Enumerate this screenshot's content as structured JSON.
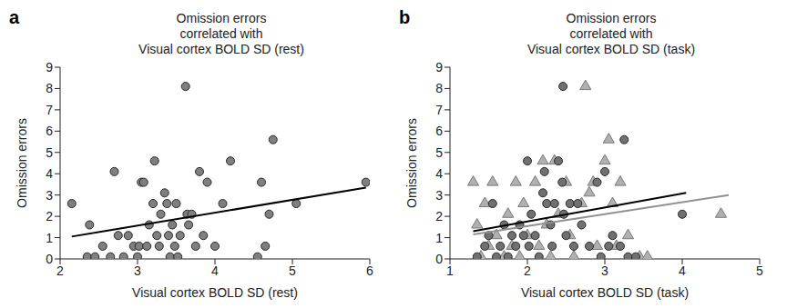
{
  "chart_data": [
    {
      "panel": "a",
      "type": "scatter",
      "title": "Omission errors\ncorrelated with\nVisual cortex BOLD SD (rest)",
      "x_label": "Visual cortex BOLD SD (rest)",
      "y_label": "Omission errors",
      "xlim": [
        2,
        6
      ],
      "xticks": [
        2,
        3,
        4,
        5,
        6
      ],
      "ylim": [
        0,
        9
      ],
      "yticks": [
        0,
        1,
        2,
        3,
        4,
        5,
        6,
        7,
        8,
        9
      ],
      "grid": false,
      "series": [
        {
          "type": "scatter",
          "marker": "circle",
          "color": "#7f7f7f",
          "values": [
            [
              2.15,
              2.6
            ],
            [
              2.35,
              0.1
            ],
            [
              2.38,
              1.6
            ],
            [
              2.45,
              0.1
            ],
            [
              2.55,
              0.6
            ],
            [
              2.65,
              0.1
            ],
            [
              2.7,
              4.1
            ],
            [
              2.75,
              1.1
            ],
            [
              2.82,
              0.1
            ],
            [
              2.88,
              1.1
            ],
            [
              2.95,
              0.6
            ],
            [
              3.0,
              0.1
            ],
            [
              3.02,
              0.6
            ],
            [
              3.05,
              3.6
            ],
            [
              3.08,
              3.6
            ],
            [
              3.12,
              0.6
            ],
            [
              3.15,
              1.6
            ],
            [
              3.2,
              2.6
            ],
            [
              3.22,
              4.6
            ],
            [
              3.25,
              1.1
            ],
            [
              3.28,
              0.6
            ],
            [
              3.3,
              2.1
            ],
            [
              3.35,
              3.1
            ],
            [
              3.38,
              2.6
            ],
            [
              3.4,
              1.1
            ],
            [
              3.42,
              0.1
            ],
            [
              3.45,
              1.6
            ],
            [
              3.48,
              0.6
            ],
            [
              3.5,
              2.6
            ],
            [
              3.52,
              0.1
            ],
            [
              3.55,
              1.1
            ],
            [
              3.62,
              8.1
            ],
            [
              3.64,
              2.1
            ],
            [
              3.66,
              1.6
            ],
            [
              3.7,
              2.1
            ],
            [
              3.75,
              0.6
            ],
            [
              3.8,
              4.1
            ],
            [
              3.85,
              1.1
            ],
            [
              3.9,
              3.6
            ],
            [
              4.0,
              0.6
            ],
            [
              4.1,
              2.6
            ],
            [
              4.2,
              4.6
            ],
            [
              4.55,
              0.1
            ],
            [
              4.6,
              3.6
            ],
            [
              4.65,
              0.6
            ],
            [
              4.7,
              2.1
            ],
            [
              4.75,
              5.6
            ],
            [
              5.05,
              2.6
            ],
            [
              5.95,
              3.6
            ]
          ]
        },
        {
          "type": "line",
          "color": "#000000",
          "values": [
            [
              2.15,
              1.05
            ],
            [
              5.95,
              3.35
            ]
          ]
        }
      ]
    },
    {
      "panel": "b",
      "type": "scatter",
      "title": "Omission errors\ncorrelated with\nVisual cortex BOLD SD (task)",
      "x_label": "Visual cortex BOLD SD (task)",
      "y_label": "Omission errors",
      "xlim": [
        1,
        5
      ],
      "xticks": [
        1,
        2,
        3,
        4,
        5
      ],
      "ylim": [
        0,
        9
      ],
      "yticks": [
        0,
        1,
        2,
        3,
        4,
        5,
        6,
        7,
        8,
        9
      ],
      "grid": false,
      "series": [
        {
          "type": "scatter",
          "marker": "triangle",
          "color": "#b0b0b0",
          "values": [
            [
              1.3,
              3.6
            ],
            [
              1.35,
              1.6
            ],
            [
              1.4,
              0.1
            ],
            [
              1.45,
              2.6
            ],
            [
              1.5,
              0.6
            ],
            [
              1.55,
              3.6
            ],
            [
              1.6,
              1.1
            ],
            [
              1.7,
              0.1
            ],
            [
              1.75,
              2.1
            ],
            [
              1.8,
              0.6
            ],
            [
              1.85,
              3.6
            ],
            [
              1.9,
              0.1
            ],
            [
              1.95,
              2.6
            ],
            [
              2.0,
              1.1
            ],
            [
              2.1,
              3.6
            ],
            [
              2.15,
              0.6
            ],
            [
              2.2,
              4.6
            ],
            [
              2.25,
              1.6
            ],
            [
              2.3,
              0.1
            ],
            [
              2.35,
              4.6
            ],
            [
              2.4,
              2.1
            ],
            [
              2.5,
              3.6
            ],
            [
              2.55,
              1.1
            ],
            [
              2.6,
              0.1
            ],
            [
              2.7,
              2.6
            ],
            [
              2.75,
              8.1
            ],
            [
              2.8,
              3.1
            ],
            [
              2.85,
              3.6
            ],
            [
              2.9,
              0.6
            ],
            [
              3.0,
              4.6
            ],
            [
              3.05,
              5.6
            ],
            [
              3.1,
              2.6
            ],
            [
              3.15,
              0.6
            ],
            [
              3.2,
              3.6
            ],
            [
              3.3,
              1.1
            ],
            [
              3.45,
              0.1
            ],
            [
              3.55,
              0.1
            ],
            [
              4.5,
              2.1
            ]
          ]
        },
        {
          "type": "scatter",
          "marker": "circle",
          "color": "#707070",
          "values": [
            [
              1.35,
              0.1
            ],
            [
              1.45,
              0.6
            ],
            [
              1.5,
              1.1
            ],
            [
              1.55,
              2.6
            ],
            [
              1.6,
              0.1
            ],
            [
              1.65,
              0.6
            ],
            [
              1.7,
              1.6
            ],
            [
              1.75,
              0.1
            ],
            [
              1.8,
              1.1
            ],
            [
              1.85,
              0.6
            ],
            [
              1.9,
              1.6
            ],
            [
              1.95,
              1.1
            ],
            [
              2.0,
              4.6
            ],
            [
              2.02,
              0.6
            ],
            [
              2.05,
              2.1
            ],
            [
              2.1,
              1.1
            ],
            [
              2.15,
              0.1
            ],
            [
              2.2,
              3.1
            ],
            [
              2.22,
              4.1
            ],
            [
              2.25,
              2.6
            ],
            [
              2.3,
              1.6
            ],
            [
              2.32,
              0.6
            ],
            [
              2.35,
              2.6
            ],
            [
              2.4,
              4.6
            ],
            [
              2.45,
              3.6
            ],
            [
              2.47,
              2.1
            ],
            [
              2.46,
              8.1
            ],
            [
              2.5,
              1.1
            ],
            [
              2.55,
              2.6
            ],
            [
              2.6,
              0.6
            ],
            [
              2.65,
              2.6
            ],
            [
              2.7,
              1.6
            ],
            [
              2.8,
              0.6
            ],
            [
              2.9,
              3.6
            ],
            [
              2.95,
              0.1
            ],
            [
              3.0,
              4.1
            ],
            [
              3.05,
              0.6
            ],
            [
              3.1,
              1.1
            ],
            [
              3.2,
              0.6
            ],
            [
              3.25,
              5.6
            ],
            [
              3.3,
              0.1
            ],
            [
              3.4,
              0.1
            ],
            [
              4.0,
              2.1
            ]
          ]
        },
        {
          "type": "line",
          "color": "#000000",
          "values": [
            [
              1.3,
              1.3
            ],
            [
              4.05,
              3.1
            ]
          ]
        },
        {
          "type": "line",
          "color": "#909090",
          "values": [
            [
              1.3,
              1.15
            ],
            [
              4.6,
              3.0
            ]
          ]
        }
      ]
    }
  ]
}
